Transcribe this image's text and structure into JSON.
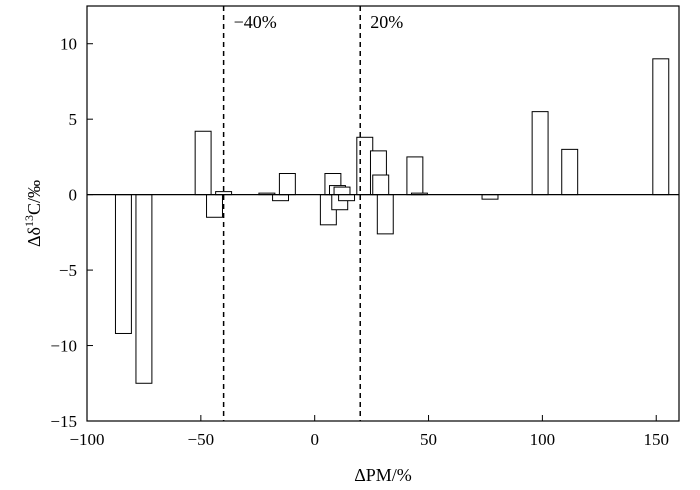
{
  "chart_data": {
    "type": "bar",
    "xlabel": "ΔPM/%",
    "ylabel_main": "Δδ",
    "ylabel_sup": "13",
    "ylabel_rest": "C/‰",
    "xlim": [
      -100,
      160
    ],
    "ylim": [
      -15,
      12.5
    ],
    "xticks": [
      -100,
      -50,
      0,
      50,
      100,
      150
    ],
    "xtick_labels": [
      "−100",
      "−50",
      "0",
      "50",
      "100",
      "150"
    ],
    "yticks": [
      -15,
      -10,
      -5,
      0,
      5,
      10
    ],
    "ytick_labels": [
      "−15",
      "−10",
      "−5",
      "0",
      "5",
      "10"
    ],
    "bar_width": 7,
    "bars": [
      {
        "x": -84,
        "y": -9.2
      },
      {
        "x": -75,
        "y": -12.5
      },
      {
        "x": -49,
        "y": 4.2
      },
      {
        "x": -44,
        "y": -1.5
      },
      {
        "x": -40,
        "y": 0.2
      },
      {
        "x": -21,
        "y": 0.1
      },
      {
        "x": -15,
        "y": -0.4
      },
      {
        "x": -12,
        "y": 1.4
      },
      {
        "x": 6,
        "y": -2.0
      },
      {
        "x": 8,
        "y": 1.4
      },
      {
        "x": 10,
        "y": 0.6
      },
      {
        "x": 11,
        "y": -1.0
      },
      {
        "x": 12,
        "y": 0.5
      },
      {
        "x": 14,
        "y": -0.4
      },
      {
        "x": 22,
        "y": 3.8
      },
      {
        "x": 28,
        "y": 2.9
      },
      {
        "x": 29,
        "y": 1.3
      },
      {
        "x": 31,
        "y": -2.6
      },
      {
        "x": 44,
        "y": 2.5
      },
      {
        "x": 46,
        "y": 0.1
      },
      {
        "x": 77,
        "y": -0.3
      },
      {
        "x": 99,
        "y": 5.5
      },
      {
        "x": 112,
        "y": 3.0
      },
      {
        "x": 152,
        "y": 9.0
      }
    ],
    "reference_lines": [
      {
        "x": -40,
        "label": "−40%"
      },
      {
        "x": 20,
        "label": "20%"
      }
    ],
    "grid": false,
    "legend": "none"
  }
}
